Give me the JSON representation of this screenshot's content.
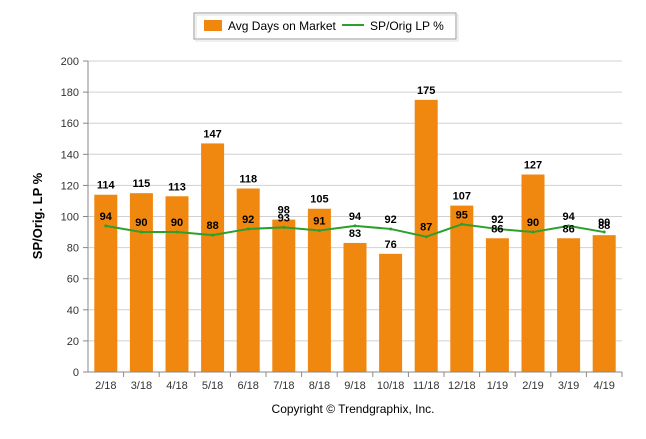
{
  "chart_data": {
    "type": "bar",
    "categories": [
      "2/18",
      "3/18",
      "4/18",
      "5/18",
      "6/18",
      "7/18",
      "8/18",
      "9/18",
      "10/18",
      "11/18",
      "12/18",
      "1/19",
      "2/19",
      "3/19",
      "4/19"
    ],
    "series": [
      {
        "name": "Avg Days on Market",
        "type": "bar",
        "color": "#f0870f",
        "values": [
          114,
          115,
          113,
          147,
          118,
          98,
          105,
          83,
          76,
          175,
          107,
          86,
          127,
          86,
          88
        ]
      },
      {
        "name": "SP/Orig LP %",
        "type": "line",
        "color": "#2ca02c",
        "values": [
          94,
          90,
          90,
          88,
          92,
          93,
          91,
          94,
          92,
          87,
          95,
          92,
          90,
          94,
          90
        ]
      }
    ],
    "ylabel": "SP/Orig. LP %",
    "xlabel": "",
    "ylim": [
      0,
      200
    ],
    "yticks": [
      0,
      20,
      40,
      60,
      80,
      100,
      120,
      140,
      160,
      180,
      200
    ],
    "grid": true,
    "legend_position": "top-center",
    "credit": "Copyright © Trendgraphix, Inc."
  }
}
